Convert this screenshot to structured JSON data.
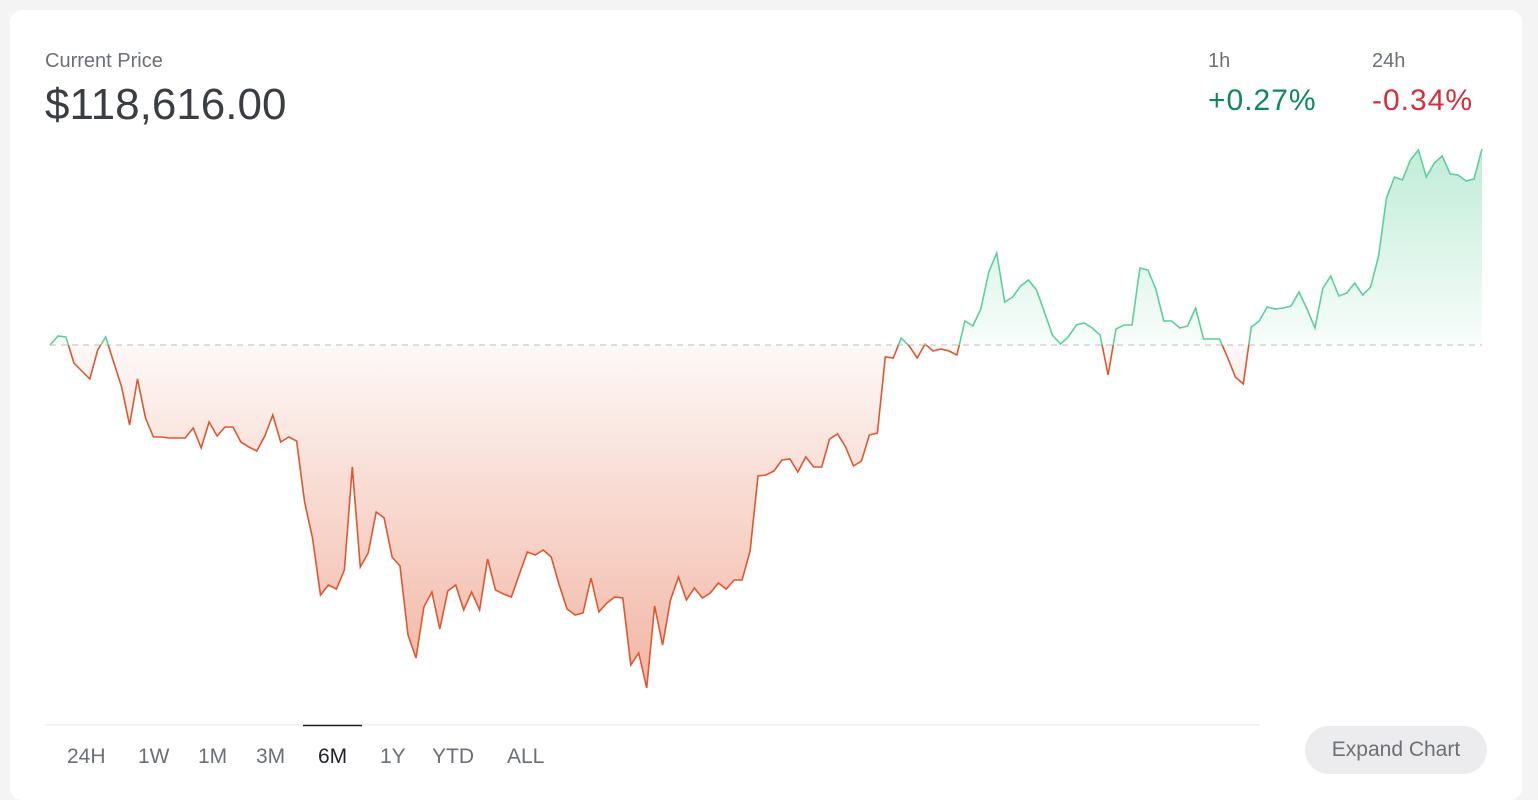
{
  "header": {
    "label": "Current Price",
    "price": "$118,616.00"
  },
  "changes": [
    {
      "label": "1h",
      "value": "+0.27%",
      "color": "#0f8a57"
    },
    {
      "label": "24h",
      "value": "-0.34%",
      "color": "#d5303a"
    }
  ],
  "tabs": [
    "24H",
    "1W",
    "1M",
    "3M",
    "6M",
    "1Y",
    "YTD",
    "ALL"
  ],
  "selected_tab_index": 4,
  "button": "Expand Chart",
  "chart_data": {
    "type": "line",
    "up_color": "#5ccf9a",
    "down_color": "#e0562e",
    "ylim": [
      0,
      560
    ],
    "values": [
      355,
      364,
      363,
      337,
      329,
      321,
      350,
      363,
      338,
      313,
      275,
      321,
      282,
      263,
      263,
      262,
      262,
      262,
      272,
      252,
      278,
      264,
      273,
      273,
      258,
      253,
      249,
      264,
      285,
      258,
      263,
      259,
      198,
      162,
      105,
      115,
      111,
      130,
      233,
      133,
      147,
      188,
      182,
      143,
      134,
      65,
      42,
      93,
      108,
      71,
      109,
      115,
      90,
      108,
      90,
      141,
      110,
      106,
      103,
      126,
      148,
      145,
      150,
      143,
      115,
      91,
      85,
      87,
      122,
      88,
      97,
      103,
      102,
      35,
      47,
      12,
      94,
      55,
      100,
      123,
      100,
      112,
      102,
      107,
      117,
      111,
      120,
      120,
      149,
      224,
      225,
      229,
      240,
      241,
      228,
      243,
      233,
      233,
      261,
      266,
      253,
      234,
      239,
      265,
      267,
      343,
      342,
      362,
      354,
      342,
      356,
      349,
      351,
      349,
      345,
      379,
      374,
      391,
      428,
      447,
      398,
      403,
      414,
      420,
      410,
      388,
      365,
      356,
      363,
      375,
      377,
      372,
      365,
      325,
      371,
      375,
      375,
      432,
      430,
      411,
      379,
      379,
      372,
      374,
      392,
      361,
      361,
      361,
      343,
      323,
      316,
      373,
      379,
      393,
      391,
      392,
      394,
      408,
      391,
      372,
      412,
      424,
      404,
      407,
      417,
      405,
      413,
      444,
      502,
      523,
      520,
      540,
      550,
      523,
      537,
      544,
      526,
      525,
      519,
      521,
      551
    ]
  }
}
